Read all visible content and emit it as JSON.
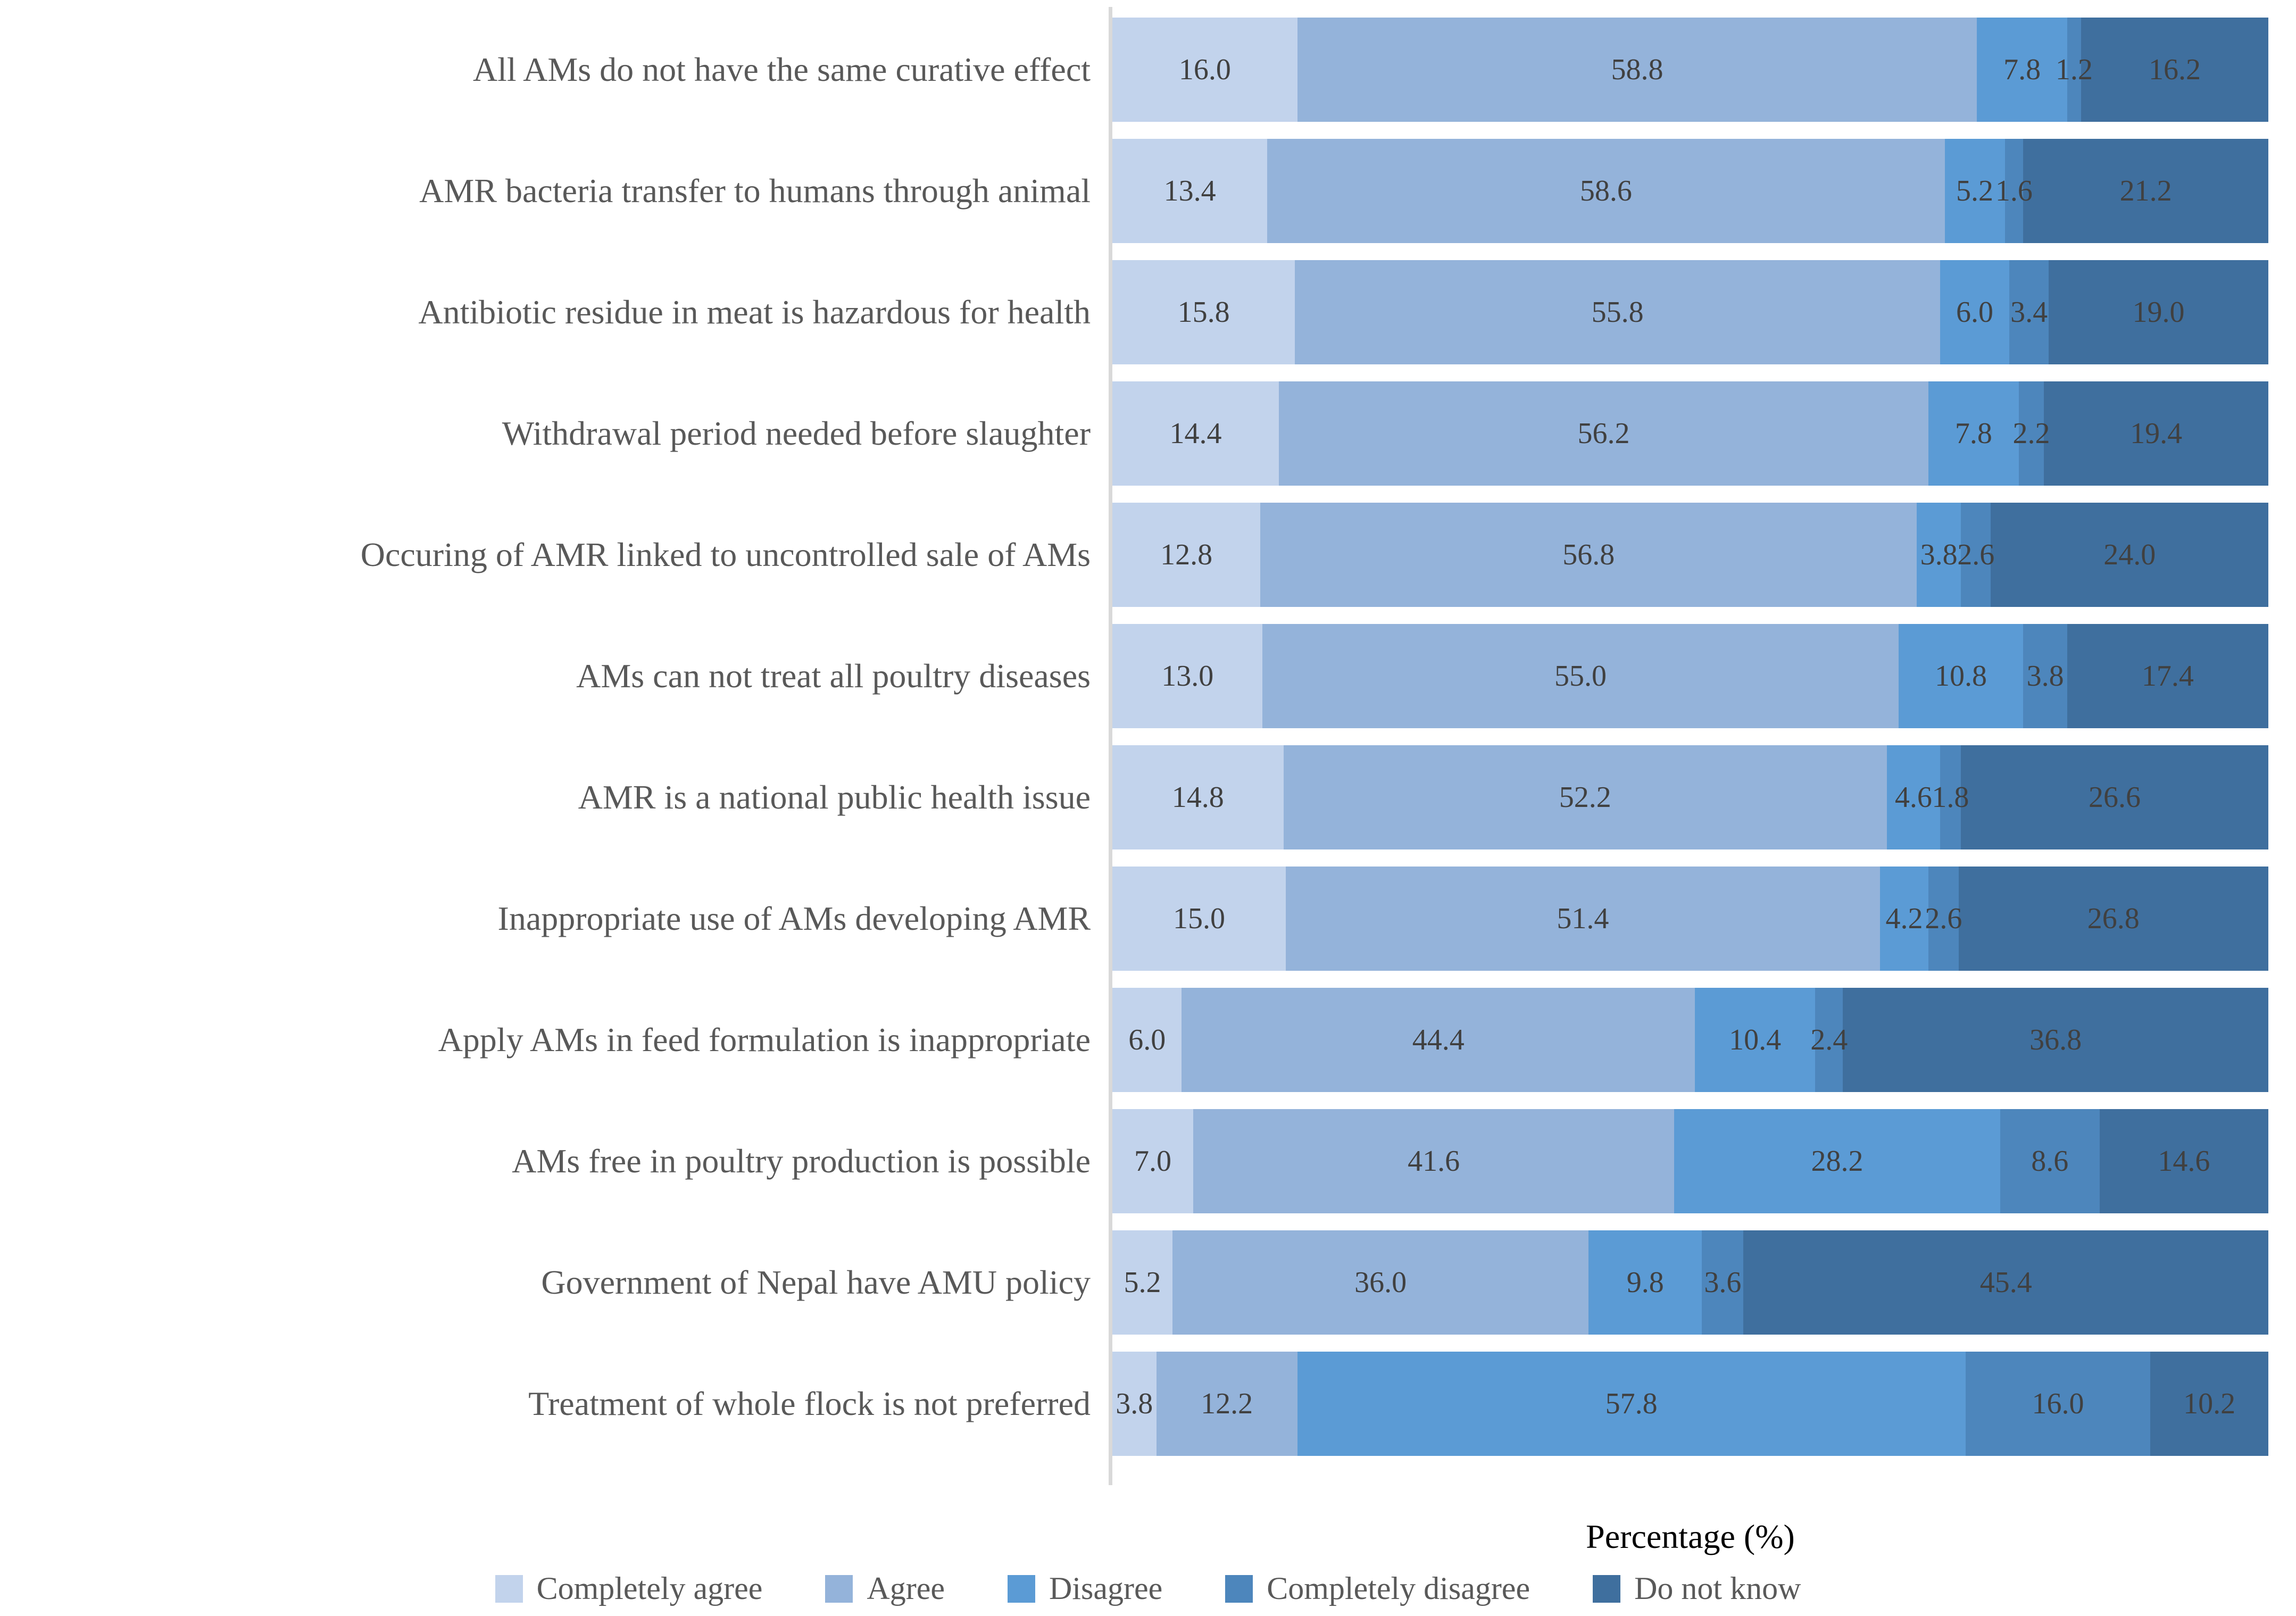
{
  "chart_data": {
    "type": "bar",
    "stacked": true,
    "orientation": "horizontal",
    "title": "",
    "xlabel": "Percentage (%)",
    "ylabel": "",
    "xlim": [
      0,
      100
    ],
    "grid": false,
    "legend_position": "bottom",
    "value_labels": true,
    "categories": [
      "All AMs do not have the same curative effect",
      "AMR bacteria transfer to humans through animal",
      "Antibiotic residue in meat is hazardous for health",
      "Withdrawal period needed before slaughter",
      "Occuring of AMR linked to uncontrolled sale of AMs",
      "AMs can not treat all poultry diseases",
      "AMR is a national public health issue",
      "Inappropriate use of AMs developing AMR",
      "Apply AMs in feed formulation is inappropriate",
      "AMs free in poultry production is possible",
      "Government of Nepal have AMU policy",
      "Treatment of whole flock is not preferred"
    ],
    "series": [
      {
        "name": "Completely agree",
        "color": "#c2d3ec",
        "values": [
          16.0,
          13.4,
          15.8,
          14.4,
          12.8,
          13.0,
          14.8,
          15.0,
          6.0,
          7.0,
          5.2,
          3.8
        ]
      },
      {
        "name": "Agree",
        "color": "#94b3da",
        "values": [
          58.8,
          58.6,
          55.8,
          56.2,
          56.8,
          55.0,
          52.2,
          51.4,
          44.4,
          41.6,
          36.0,
          12.2
        ]
      },
      {
        "name": "Disagree",
        "color": "#5b9bd5",
        "values": [
          7.8,
          5.2,
          6.0,
          7.8,
          3.8,
          10.8,
          4.6,
          4.2,
          10.4,
          28.2,
          9.8,
          57.8
        ]
      },
      {
        "name": "Completely disagree",
        "color": "#4d86bc",
        "values": [
          1.2,
          1.6,
          3.4,
          2.2,
          2.6,
          3.8,
          1.8,
          2.6,
          2.4,
          8.6,
          3.6,
          16.0
        ]
      },
      {
        "name": "Do not know",
        "color": "#3f6f9e",
        "values": [
          16.2,
          21.2,
          19.0,
          19.4,
          24.0,
          17.4,
          26.6,
          26.8,
          36.8,
          14.6,
          45.4,
          10.2
        ]
      }
    ],
    "axis_line_color": "#d9d9d9",
    "category_label_color": "#595959",
    "value_label_color": "#404040",
    "xlabel_color": "#000000"
  }
}
